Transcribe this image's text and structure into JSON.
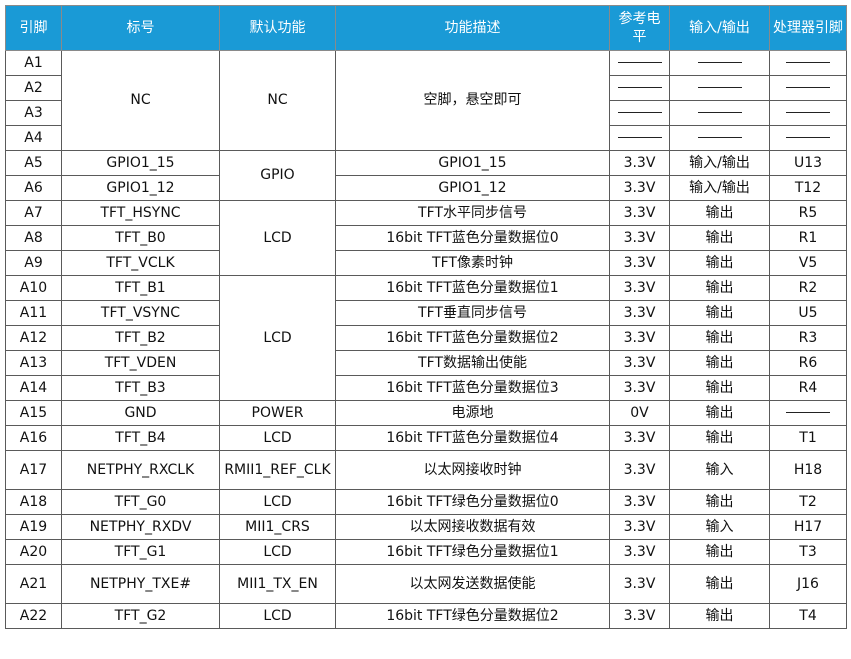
{
  "headers": {
    "pin": "引脚",
    "label": "标号",
    "default_func": "默认功能",
    "func_desc": "功能描述",
    "ref_level": "参考电平",
    "direction": "输入/输出",
    "cpu_pin": "处理器引脚"
  },
  "groups": {
    "nc": {
      "label": "NC",
      "func": "NC",
      "desc": "空脚，悬空即可"
    },
    "gpio": {
      "func": "GPIO"
    },
    "lcd1": {
      "func": "LCD"
    },
    "lcd2": {
      "func": "LCD"
    }
  },
  "rows": [
    {
      "pin": "A1",
      "ref": "",
      "dir": "",
      "cpu": ""
    },
    {
      "pin": "A2",
      "ref": "",
      "dir": "",
      "cpu": ""
    },
    {
      "pin": "A3",
      "ref": "",
      "dir": "",
      "cpu": ""
    },
    {
      "pin": "A4",
      "ref": "",
      "dir": "",
      "cpu": ""
    },
    {
      "pin": "A5",
      "label": "GPIO1_15",
      "desc": "GPIO1_15",
      "ref": "3.3V",
      "dir": "输入/输出",
      "cpu": "U13"
    },
    {
      "pin": "A6",
      "label": "GPIO1_12",
      "desc": "GPIO1_12",
      "ref": "3.3V",
      "dir": "输入/输出",
      "cpu": "T12"
    },
    {
      "pin": "A7",
      "label": "TFT_HSYNC",
      "desc": "TFT水平同步信号",
      "ref": "3.3V",
      "dir": "输出",
      "cpu": "R5"
    },
    {
      "pin": "A8",
      "label": "TFT_B0",
      "desc": "16bit TFT蓝色分量数据位0",
      "ref": "3.3V",
      "dir": "输出",
      "cpu": "R1"
    },
    {
      "pin": "A9",
      "label": "TFT_VCLK",
      "desc": "TFT像素时钟",
      "ref": "3.3V",
      "dir": "输出",
      "cpu": "V5"
    },
    {
      "pin": "A10",
      "label": "TFT_B1",
      "desc": "16bit TFT蓝色分量数据位1",
      "ref": "3.3V",
      "dir": "输出",
      "cpu": "R2"
    },
    {
      "pin": "A11",
      "label": "TFT_VSYNC",
      "desc": "TFT垂直同步信号",
      "ref": "3.3V",
      "dir": "输出",
      "cpu": "U5"
    },
    {
      "pin": "A12",
      "label": "TFT_B2",
      "desc": "16bit TFT蓝色分量数据位2",
      "ref": "3.3V",
      "dir": "输出",
      "cpu": "R3"
    },
    {
      "pin": "A13",
      "label": "TFT_VDEN",
      "desc": "TFT数据输出使能",
      "ref": "3.3V",
      "dir": "输出",
      "cpu": "R6"
    },
    {
      "pin": "A14",
      "label": "TFT_B3",
      "desc": "16bit TFT蓝色分量数据位3",
      "ref": "3.3V",
      "dir": "输出",
      "cpu": "R4"
    },
    {
      "pin": "A15",
      "label": "GND",
      "func": "POWER",
      "desc": "电源地",
      "ref": "0V",
      "dir": "输出",
      "cpu": ""
    },
    {
      "pin": "A16",
      "label": "TFT_B4",
      "func": "LCD",
      "desc": "16bit TFT蓝色分量数据位4",
      "ref": "3.3V",
      "dir": "输出",
      "cpu": "T1"
    },
    {
      "pin": "A17",
      "label": "NETPHY_RXCLK",
      "func": "RMII1_REF_CLK",
      "desc": "以太网接收时钟",
      "ref": "3.3V",
      "dir": "输入",
      "cpu": "H18"
    },
    {
      "pin": "A18",
      "label": "TFT_G0",
      "func": "LCD",
      "desc": "16bit TFT绿色分量数据位0",
      "ref": "3.3V",
      "dir": "输出",
      "cpu": "T2"
    },
    {
      "pin": "A19",
      "label": "NETPHY_RXDV",
      "func": "MII1_CRS",
      "desc": "以太网接收数据有效",
      "ref": "3.3V",
      "dir": "输入",
      "cpu": "H17"
    },
    {
      "pin": "A20",
      "label": "TFT_G1",
      "func": "LCD",
      "desc": "16bit TFT绿色分量数据位1",
      "ref": "3.3V",
      "dir": "输出",
      "cpu": "T3"
    },
    {
      "pin": "A21",
      "label": "NETPHY_TXE#",
      "func": "MII1_TX_EN",
      "desc": "以太网发送数据使能",
      "ref": "3.3V",
      "dir": "输出",
      "cpu": "J16"
    },
    {
      "pin": "A22",
      "label": "TFT_G2",
      "func": "LCD",
      "desc": "16bit TFT绿色分量数据位2",
      "ref": "3.3V",
      "dir": "输出",
      "cpu": "T4"
    }
  ]
}
